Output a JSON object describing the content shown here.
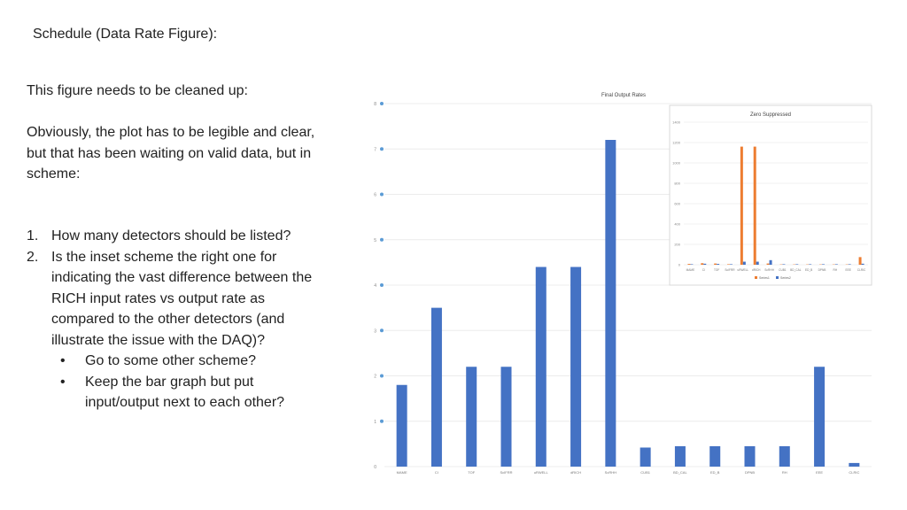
{
  "slide": {
    "title": "Schedule  (Data Rate Figure):",
    "intro": "This figure needs to be cleaned up:",
    "obviously": "Obviously, the plot has to be legible and clear, but that has been waiting on valid data, but in scheme:",
    "questions": [
      {
        "num": "1.",
        "text": "How many detectors should be listed?"
      },
      {
        "num": "2.",
        "text": "Is the inset scheme the right one for indicating the vast difference between the RICH input rates vs output rate as compared to the other detectors (and illustrate the issue with the DAQ)?"
      }
    ],
    "bullets": [
      {
        "mark": "•",
        "text": "Go to some other scheme?"
      },
      {
        "mark": "•",
        "text": "Keep the bar graph but put input/output next to each other?"
      }
    ]
  },
  "chart_data": [
    {
      "type": "bar",
      "title": "Final Output Rates",
      "categories": [
        "MAME",
        "CI",
        "TOF",
        "ScIFRR",
        "uRWELL",
        "dRICH",
        "ScRHH",
        "CUB1",
        "BD_CAL",
        "ED_B",
        "DPNB",
        "RH",
        "EEE",
        "CLRIC"
      ],
      "values": [
        1.8,
        3.5,
        2.2,
        2.2,
        4.4,
        4.4,
        7.2,
        0.42,
        0.45,
        0.45,
        0.45,
        0.45,
        2.2,
        0.08
      ],
      "ylim": [
        0,
        8
      ],
      "bar_color": "#4472c4"
    },
    {
      "type": "bar",
      "title": "Zero Suppressed",
      "categories": [
        "MAME",
        "CI",
        "TOF",
        "ScIFRR",
        "uRWELL",
        "dRICH",
        "ScRHH",
        "CUB1",
        "BD_CAL",
        "ED_B",
        "DPNB",
        "RH",
        "EEE",
        "CLRIC"
      ],
      "ytick_labels": [
        "1400",
        "1200",
        "1000",
        "800",
        "600",
        "400",
        "200",
        "0"
      ],
      "ylim": [
        0,
        1400
      ],
      "series": [
        {
          "name": "Series1",
          "color": "#ed7d31",
          "values": [
            8,
            15,
            12,
            5,
            1160,
            1160,
            12,
            3,
            3,
            3,
            3,
            3,
            3,
            75
          ]
        },
        {
          "name": "Series2",
          "color": "#4472c4",
          "values": [
            5,
            10,
            8,
            5,
            30,
            30,
            45,
            5,
            5,
            5,
            5,
            5,
            5,
            10
          ]
        }
      ],
      "legend": "bottom"
    }
  ]
}
